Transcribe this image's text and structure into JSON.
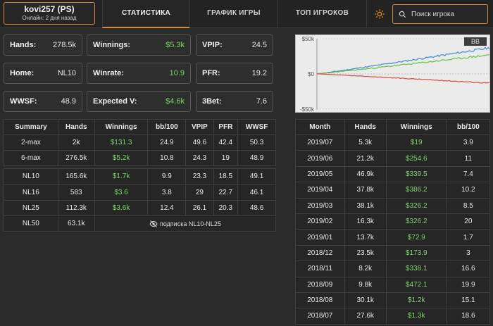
{
  "header": {
    "player_name": "kovi257 (PS)",
    "player_status": "Онлайн: 2 дня назад",
    "tabs": [
      "СТАТИСТИКА",
      "ГРАФИК ИГРЫ",
      "ТОП ИГРОКОВ"
    ],
    "search_placeholder": "Поиск игрока",
    "accent": "#e08a2e"
  },
  "cards": [
    {
      "label": "Hands:",
      "value": "278.5k",
      "green": false
    },
    {
      "label": "Winnings:",
      "value": "$5.3k",
      "green": true
    },
    {
      "label": "VPIP:",
      "value": "24.5",
      "green": false
    },
    {
      "label": "Home:",
      "value": "NL10",
      "green": false
    },
    {
      "label": "Winrate:",
      "value": "10.9",
      "green": true
    },
    {
      "label": "PFR:",
      "value": "19.2",
      "green": false
    },
    {
      "label": "WWSF:",
      "value": "48.9",
      "green": false
    },
    {
      "label": "Expected V:",
      "value": "$4.6k",
      "green": true
    },
    {
      "label": "3Bet:",
      "value": "7.6",
      "green": false
    }
  ],
  "chart": {
    "y_labels": [
      "$50k",
      "$0",
      "-$50k"
    ],
    "badge": "BB",
    "ylim": [
      -50000,
      50000
    ],
    "colors": {
      "winnings": "#6ac74c",
      "expected": "#4a8fd8",
      "nonsd": "#d9584a"
    }
  },
  "summary": {
    "headers": [
      "Summary",
      "Hands",
      "Winnings",
      "bb/100",
      "VPIP",
      "PFR",
      "WWSF"
    ],
    "rows_a": [
      [
        "2-max",
        "2k",
        "$131.3",
        "24.9",
        "49.6",
        "42.4",
        "50.3"
      ],
      [
        "6-max",
        "276.5k",
        "$5.2k",
        "10.8",
        "24.3",
        "19",
        "48.9"
      ]
    ],
    "rows_b": [
      [
        "NL10",
        "165.6k",
        "$1.7k",
        "9.9",
        "23.3",
        "18.5",
        "49.1"
      ],
      [
        "NL16",
        "583",
        "$3.6",
        "3.8",
        "29",
        "22.7",
        "46.1"
      ],
      [
        "NL25",
        "112.3k",
        "$3.6k",
        "12.4",
        "26.1",
        "20.3",
        "48.6"
      ]
    ],
    "locked_row": {
      "limit": "NL50",
      "hands": "63.1k",
      "note": "подписка NL10-NL25"
    }
  },
  "months": {
    "headers": [
      "Month",
      "Hands",
      "Winnings",
      "bb/100"
    ],
    "rows": [
      [
        "2019/07",
        "5.3k",
        "$19",
        "3.9"
      ],
      [
        "2019/06",
        "21.2k",
        "$254.6",
        "11"
      ],
      [
        "2019/05",
        "46.9k",
        "$339.5",
        "7.4"
      ],
      [
        "2019/04",
        "37.8k",
        "$386.2",
        "10.2"
      ],
      [
        "2019/03",
        "38.1k",
        "$326.2",
        "8.5"
      ],
      [
        "2019/02",
        "16.3k",
        "$326.2",
        "20"
      ],
      [
        "2019/01",
        "13.7k",
        "$72.9",
        "1.7"
      ],
      [
        "2018/12",
        "23.5k",
        "$173.9",
        "3"
      ],
      [
        "2018/11",
        "8.2k",
        "$338.1",
        "16.6"
      ],
      [
        "2018/09",
        "9.8k",
        "$472.1",
        "19.9"
      ],
      [
        "2018/08",
        "30.1k",
        "$1.2k",
        "15.1"
      ],
      [
        "2018/07",
        "27.6k",
        "$1.3k",
        "18.6"
      ]
    ]
  }
}
